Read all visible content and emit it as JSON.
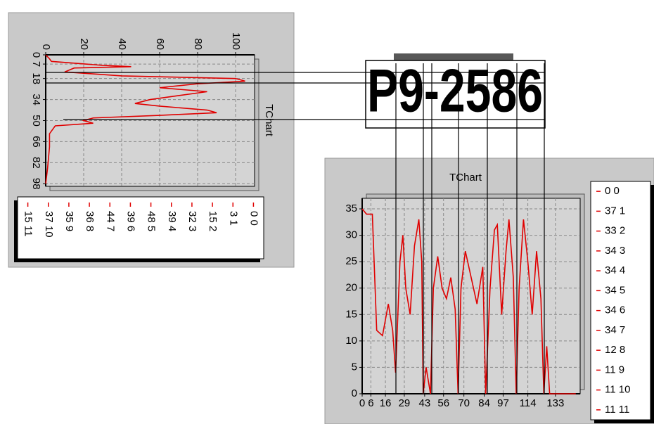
{
  "plate_text": "P9-2586",
  "chart_data": [
    {
      "type": "line",
      "rotated": true,
      "title": "TChart",
      "title_color": "#2020c0",
      "color": "#e00000",
      "grid": true,
      "x": [
        0,
        3,
        5,
        8,
        9,
        10,
        13,
        16,
        18,
        20,
        22,
        25,
        28,
        31,
        34,
        37,
        39,
        42,
        44,
        46,
        48,
        50,
        52,
        54,
        60,
        70,
        86,
        98
      ],
      "values": [
        0,
        2,
        3,
        30,
        45,
        15,
        10,
        40,
        100,
        105,
        80,
        60,
        85,
        70,
        55,
        47,
        60,
        85,
        90,
        60,
        25,
        20,
        25,
        5,
        2,
        2,
        1,
        0
      ],
      "xlim": [
        0,
        100
      ],
      "xticks": [
        0,
        7,
        18,
        34,
        50,
        66,
        82,
        98
      ],
      "ylim": [
        0,
        110
      ],
      "yticks": [
        0,
        20,
        40,
        60,
        80,
        100
      ],
      "legend_items": [
        "0 0",
        "3 1",
        "15 2",
        "32 3",
        "39 4",
        "48 5",
        "39 6",
        "44 7",
        "36 8",
        "35 9",
        "37 10",
        "15 11"
      ]
    },
    {
      "type": "line",
      "rotated": false,
      "title": "TChart",
      "title_color": "#2020c0",
      "color": "#e00000",
      "grid": true,
      "x": [
        0,
        3,
        7,
        10,
        14,
        18,
        21,
        23,
        26,
        28,
        30,
        33,
        36,
        39,
        41,
        42,
        44,
        47,
        49,
        52,
        55,
        58,
        61,
        64,
        66,
        68,
        71,
        75,
        79,
        83,
        85,
        88,
        91,
        93,
        96,
        99,
        101,
        104,
        106,
        108,
        111,
        114,
        117,
        120,
        123,
        125,
        127,
        129,
        138,
        147
      ],
      "values": [
        35,
        34,
        34,
        12,
        11,
        17,
        12,
        4,
        25,
        30,
        20,
        15,
        28,
        33,
        25,
        0,
        5,
        0,
        20,
        26,
        20,
        18,
        22,
        16,
        0,
        20,
        27,
        22,
        17,
        24,
        0,
        20,
        31,
        32,
        15,
        27,
        33,
        22,
        0,
        20,
        33,
        25,
        15,
        27,
        18,
        0,
        9,
        0,
        0,
        0
      ],
      "xlim": [
        0,
        150
      ],
      "xticks": [
        0,
        6,
        16,
        29,
        43,
        56,
        70,
        84,
        97,
        114,
        133
      ],
      "ylim": [
        0,
        37
      ],
      "yticks": [
        0,
        5,
        10,
        15,
        20,
        25,
        30,
        35
      ],
      "legend_items": [
        "0 0",
        "37 1",
        "33 2",
        "34 3",
        "34 4",
        "34 5",
        "34 6",
        "34 7",
        "12 8",
        "11 9",
        "11 10",
        "11 11"
      ]
    }
  ]
}
